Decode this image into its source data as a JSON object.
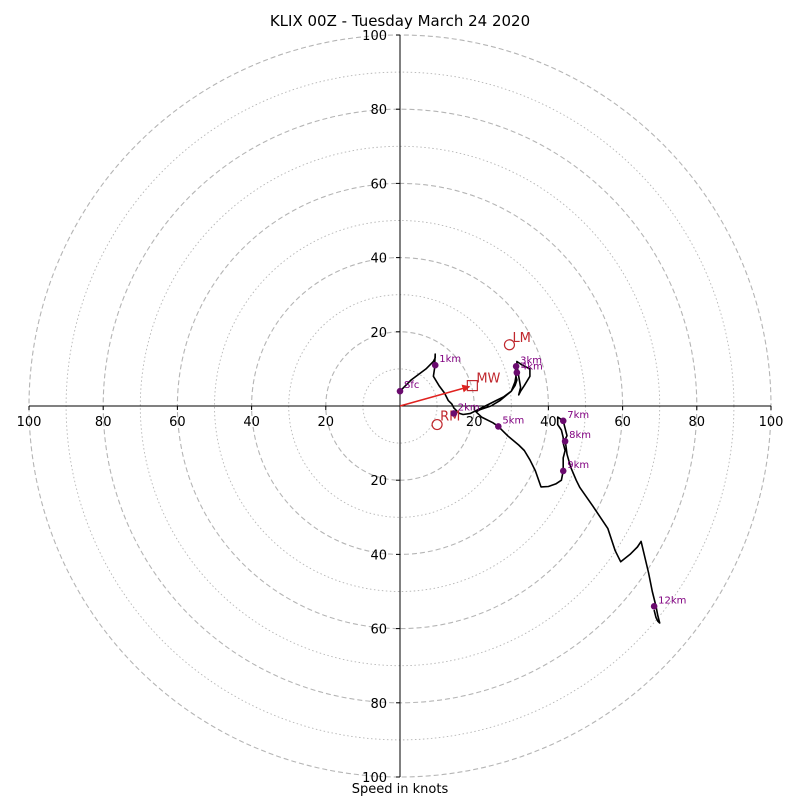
{
  "chart_data": {
    "type": "hodograph",
    "title": "KLIX 00Z - Tuesday March 24 2020",
    "xlabel": "Speed in knots",
    "ring_labels": [
      "20",
      "40",
      "60",
      "80",
      "100"
    ],
    "axis_range": [
      -100,
      100
    ],
    "trace": [
      [
        0,
        4
      ],
      [
        3,
        7
      ],
      [
        7,
        10
      ],
      [
        8,
        11
      ],
      [
        9,
        12
      ],
      [
        9.5,
        13
      ],
      [
        9.5,
        14
      ],
      [
        9.3,
        10
      ],
      [
        9,
        8
      ],
      [
        10.5,
        5.5
      ],
      [
        12,
        3.5
      ],
      [
        13,
        1.5
      ],
      [
        14,
        0.5
      ],
      [
        14.5,
        -0.5
      ],
      [
        16,
        -2
      ],
      [
        17,
        -2.3
      ],
      [
        19,
        -2
      ],
      [
        21,
        -1
      ],
      [
        23,
        0
      ],
      [
        26,
        1.5
      ],
      [
        28,
        2.5
      ],
      [
        30,
        4
      ],
      [
        31,
        5.5
      ],
      [
        31.5,
        7
      ],
      [
        31,
        9
      ],
      [
        31.3,
        10.7
      ],
      [
        31.5,
        11
      ],
      [
        31.6,
        10.7
      ],
      [
        32,
        8
      ],
      [
        32.5,
        5
      ],
      [
        32,
        3
      ],
      [
        32.5,
        4
      ],
      [
        33.5,
        5.5
      ],
      [
        35,
        8
      ],
      [
        35,
        10
      ],
      [
        33,
        11
      ],
      [
        31.5,
        12
      ],
      [
        31.5,
        9.5
      ],
      [
        31,
        6.5
      ],
      [
        30,
        4
      ],
      [
        27,
        1.5
      ],
      [
        24.5,
        0
      ],
      [
        21.5,
        -1
      ],
      [
        20.5,
        -1.6
      ],
      [
        22,
        -3
      ],
      [
        25,
        -4.5
      ],
      [
        26.5,
        -5.5
      ],
      [
        29,
        -8
      ],
      [
        32,
        -10.5
      ],
      [
        33.5,
        -12
      ],
      [
        35,
        -14.5
      ],
      [
        36.5,
        -17.5
      ],
      [
        38,
        -21.8
      ],
      [
        40,
        -21.7
      ],
      [
        42,
        -21
      ],
      [
        43.5,
        -20
      ],
      [
        44,
        -17.5
      ],
      [
        44,
        -14
      ],
      [
        44.5,
        -12
      ],
      [
        44,
        -10
      ],
      [
        44,
        -8.5
      ],
      [
        43.5,
        -6.5
      ],
      [
        42.5,
        -5
      ],
      [
        42.5,
        -3
      ],
      [
        44,
        -4
      ],
      [
        44.5,
        -6
      ],
      [
        45,
        -8
      ],
      [
        44.5,
        -9
      ],
      [
        45,
        -13
      ],
      [
        46,
        -16.5
      ],
      [
        47.5,
        -20
      ],
      [
        48.5,
        -22
      ],
      [
        52,
        -27
      ],
      [
        56,
        -33
      ],
      [
        58,
        -39
      ],
      [
        59.5,
        -42
      ],
      [
        62,
        -40
      ],
      [
        64,
        -38
      ],
      [
        65,
        -36.5
      ],
      [
        67,
        -45
      ],
      [
        68,
        -50
      ],
      [
        69,
        -54
      ],
      [
        69.5,
        -56.5
      ],
      [
        70,
        -58.5
      ],
      [
        69.5,
        -58
      ],
      [
        69,
        -57
      ],
      [
        68.5,
        -55
      ]
    ],
    "height_markers": [
      {
        "label": "Sfc",
        "x": 0,
        "y": 4
      },
      {
        "label": "1km",
        "x": 9.5,
        "y": 11
      },
      {
        "label": "2km",
        "x": 14.5,
        "y": -2
      },
      {
        "label": "3km",
        "x": 31.3,
        "y": 10.7
      },
      {
        "label": "4km",
        "x": 31.5,
        "y": 9
      },
      {
        "label": "5km",
        "x": 26.5,
        "y": -5.5
      },
      {
        "label": "7km",
        "x": 44,
        "y": -4
      },
      {
        "label": "8km",
        "x": 44.5,
        "y": -9.5
      },
      {
        "label": "9km",
        "x": 44,
        "y": -17.5
      },
      {
        "label": "12km",
        "x": 68.5,
        "y": -54
      }
    ],
    "storm_motion": {
      "mw": {
        "label": "MW",
        "x": 19.5,
        "y": 5.5
      },
      "lm": {
        "label": "LM",
        "x": 29.5,
        "y": 16.5
      },
      "rm": {
        "label": "RM",
        "x": 10,
        "y": -5
      }
    },
    "colors": {
      "trace": "#000000",
      "marker": "#6a0a6e",
      "marker_label": "#800080",
      "storm": "#c0272d",
      "mw_arrow": "#e0221f",
      "grid": "#b5b5b5"
    }
  }
}
